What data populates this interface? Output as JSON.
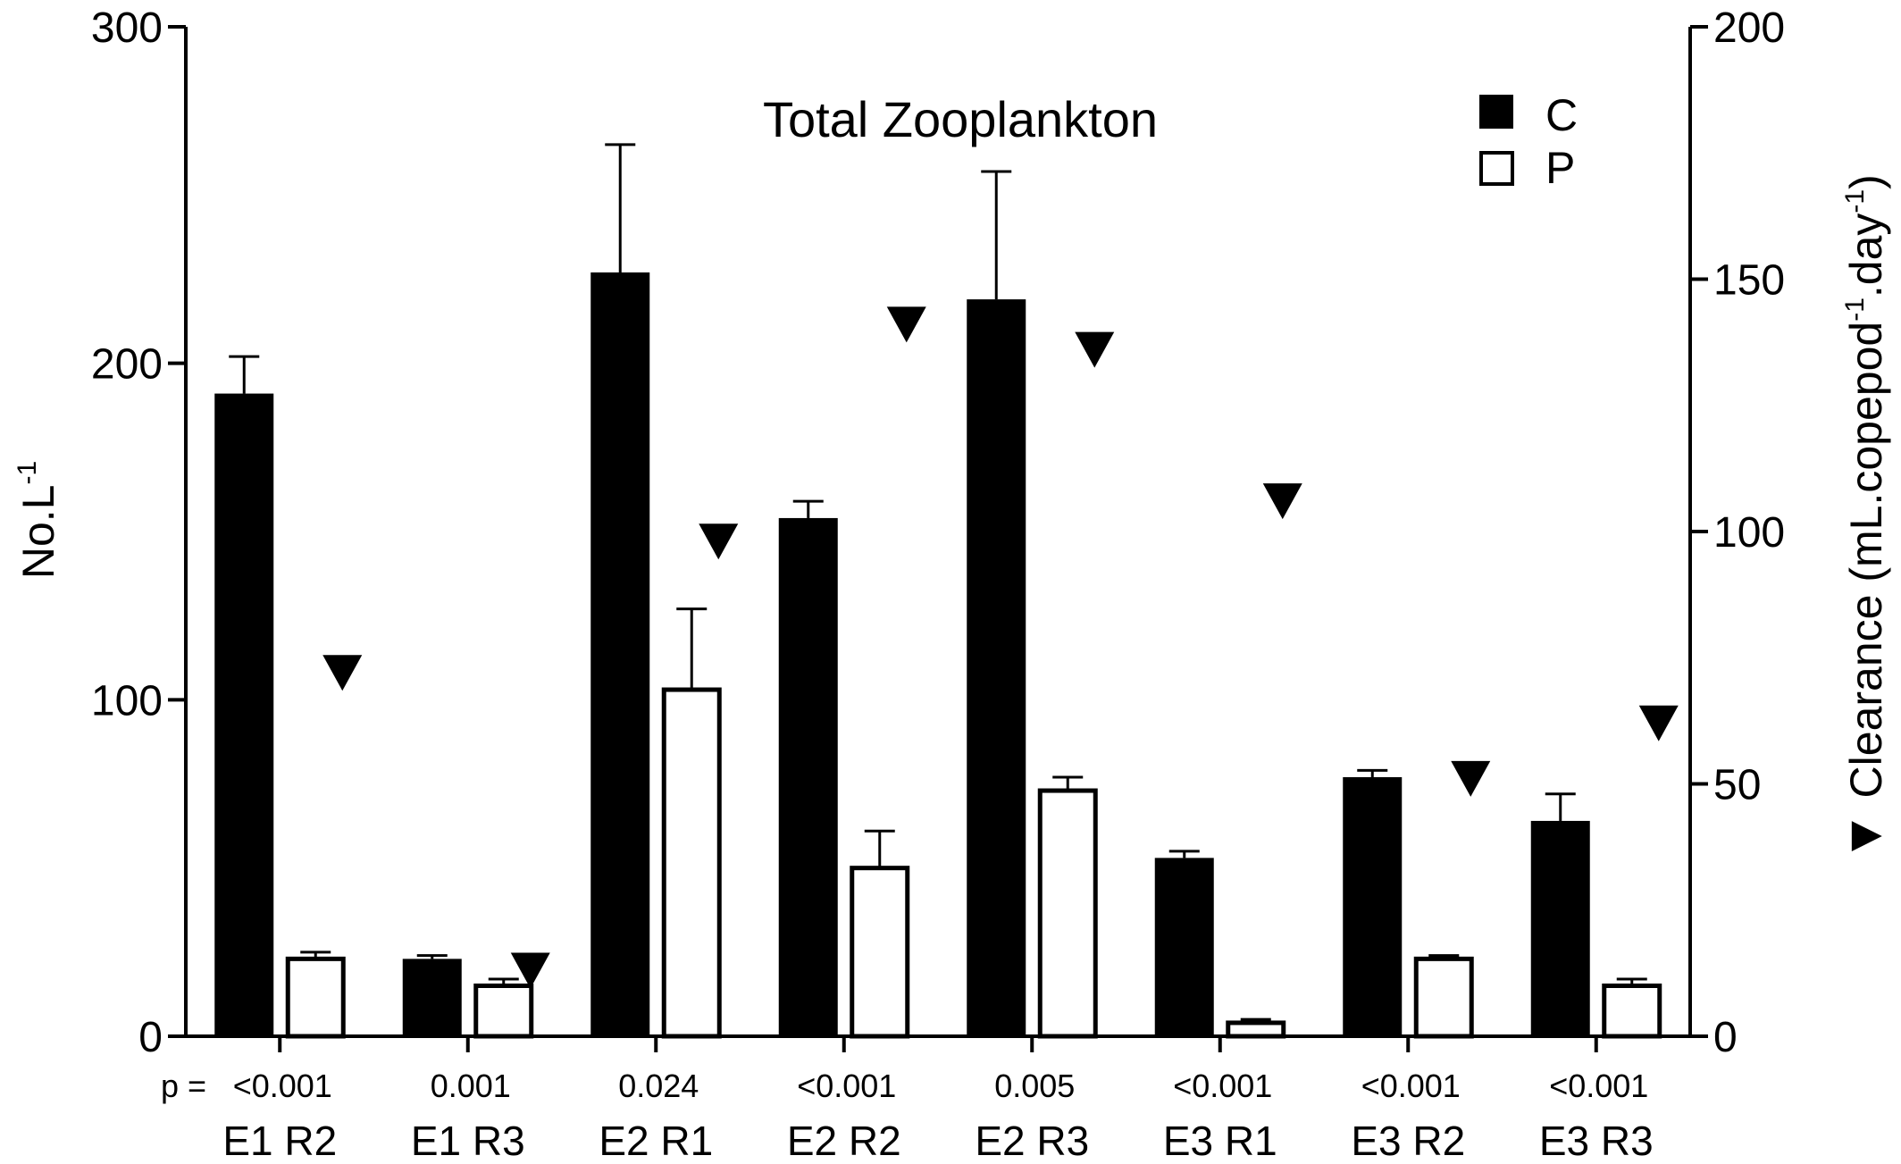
{
  "chart_data": {
    "type": "bar",
    "title": "Total Zooplankton",
    "ylabel": {
      "text": "No.L",
      "sup": "-1"
    },
    "y2label": {
      "marker": "▼",
      "prefix": "Clearance (mL.copepod",
      "sup1": "-1",
      "mid": ".day",
      "sup2": "-1",
      "suffix": ")"
    },
    "ylim": [
      0,
      300
    ],
    "y_ticks": [
      "0",
      "100",
      "200",
      "300"
    ],
    "y2lim": [
      0,
      200
    ],
    "y2_ticks": [
      "0",
      "50",
      "100",
      "150",
      "200"
    ],
    "categories": [
      "E1 R2",
      "E1 R3",
      "E2 R1",
      "E2 R2",
      "E2 R3",
      "E3 R1",
      "E3 R2",
      "E3 R3"
    ],
    "p_prefix": "p =",
    "p_values": [
      "<0.001",
      "0.001",
      "0.024",
      "<0.001",
      "0.005",
      "<0.001",
      "<0.001",
      "<0.001"
    ],
    "legend_position": "top-right",
    "series": [
      {
        "name": "C",
        "fill": "#000000",
        "values": [
          191,
          23,
          227,
          154,
          219,
          53,
          77,
          64
        ],
        "errors": [
          11,
          1,
          38,
          5,
          38,
          2,
          2,
          8
        ]
      },
      {
        "name": "P",
        "fill": "#ffffff",
        "values": [
          23,
          15,
          103,
          50,
          73,
          4,
          23,
          15
        ],
        "errors": [
          2,
          2,
          24,
          11,
          4,
          1,
          1,
          2
        ]
      }
    ],
    "clearance": {
      "axis": "right",
      "marker": "down-triangle",
      "values": [
        72,
        13,
        98,
        141,
        136,
        106,
        51,
        62
      ]
    },
    "colors": {
      "axis": "#000000",
      "bar_c": "#000000",
      "bar_p": "#ffffff"
    }
  }
}
